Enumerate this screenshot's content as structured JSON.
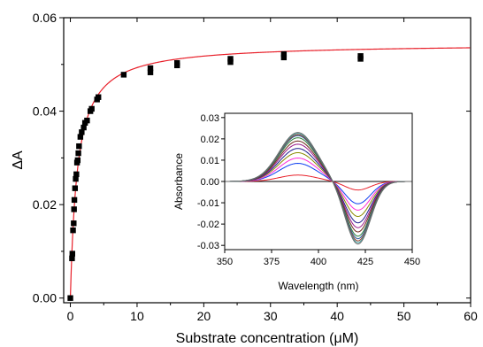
{
  "chart_data": [
    {
      "type": "scatter",
      "xlabel": "Substrate concentration (μM)",
      "ylabel": "ΔA",
      "xlim": [
        -1,
        60
      ],
      "ylim": [
        -0.001,
        0.06
      ],
      "x_ticks": [
        0,
        10,
        20,
        30,
        40,
        50,
        60
      ],
      "y_ticks": [
        0.0,
        0.02,
        0.04,
        0.06
      ],
      "x_tick_labels": [
        "0",
        "10",
        "20",
        "30",
        "40",
        "50",
        "60"
      ],
      "y_tick_labels": [
        "0.00",
        "0.02",
        "0.04",
        "0.06"
      ],
      "marker_color": "#000000",
      "fit_color": "#e8202a",
      "series": [
        {
          "kind": "points",
          "x": [
            0,
            0.25,
            0.3,
            0.4,
            0.5,
            0.55,
            0.6,
            0.7,
            0.8,
            0.9,
            1.0,
            1.1,
            1.2,
            1.3,
            1.5,
            1.7,
            2.0,
            2.2,
            2.5,
            3.0,
            3.2,
            4.0,
            4.2,
            8.0,
            12.0,
            12.0,
            16.0,
            16.0,
            24.0,
            24.0,
            32.0,
            32.0,
            43.5,
            43.5
          ],
          "y": [
            0.0,
            0.0085,
            0.0095,
            0.0145,
            0.016,
            0.019,
            0.021,
            0.0235,
            0.0255,
            0.0265,
            0.029,
            0.0295,
            0.031,
            0.0325,
            0.0345,
            0.0355,
            0.0365,
            0.0375,
            0.038,
            0.04,
            0.0405,
            0.0425,
            0.043,
            0.0478,
            0.0483,
            0.0492,
            0.0498,
            0.0503,
            0.0505,
            0.0512,
            0.0515,
            0.0522,
            0.0512,
            0.0518
          ]
        },
        {
          "kind": "fit",
          "model": "A = Amax*S/(Kd+S)",
          "Amax": 0.0545,
          "Kd": 1.05
        }
      ]
    },
    {
      "type": "line",
      "xlabel": "Wavelength (nm)",
      "ylabel": "Absorbance",
      "xlim": [
        350,
        450
      ],
      "ylim": [
        -0.032,
        0.032
      ],
      "x_ticks": [
        350,
        375,
        400,
        425,
        450
      ],
      "y_ticks": [
        -0.03,
        -0.02,
        -0.01,
        0.0,
        0.01,
        0.02,
        0.03
      ],
      "x_tick_labels": [
        "350",
        "375",
        "400",
        "425",
        "450"
      ],
      "y_tick_labels": [
        "-0.03",
        "-0.02",
        "-0.01",
        "0.00",
        "0.01",
        "0.02",
        "0.03"
      ],
      "series": [
        {
          "color": "#000000",
          "peak_390": 0.0,
          "trough_420": 0.0
        },
        {
          "color": "#e8202a",
          "peak_390": 0.003,
          "trough_420": -0.004
        },
        {
          "color": "#0b3df0",
          "peak_390": 0.0085,
          "trough_420": -0.0105
        },
        {
          "color": "#ff2bd6",
          "peak_390": 0.011,
          "trough_420": -0.0135
        },
        {
          "color": "#8a8a00",
          "peak_390": 0.0135,
          "trough_420": -0.0165
        },
        {
          "color": "#1c1c8c",
          "peak_390": 0.0155,
          "trough_420": -0.0195
        },
        {
          "color": "#9a1b8a",
          "peak_390": 0.0175,
          "trough_420": -0.0218
        },
        {
          "color": "#6f2a1a",
          "peak_390": 0.019,
          "trough_420": -0.0238
        },
        {
          "color": "#2f7f3a",
          "peak_390": 0.0205,
          "trough_420": -0.0258
        },
        {
          "color": "#2a5c9a",
          "peak_390": 0.0215,
          "trough_420": -0.027
        },
        {
          "color": "#9a3f2a",
          "peak_390": 0.022,
          "trough_420": -0.028
        },
        {
          "color": "#3fa0a0",
          "peak_390": 0.0225,
          "trough_420": -0.0288
        },
        {
          "color": "#6a6a6a",
          "peak_390": 0.023,
          "trough_420": -0.0295
        }
      ]
    }
  ]
}
